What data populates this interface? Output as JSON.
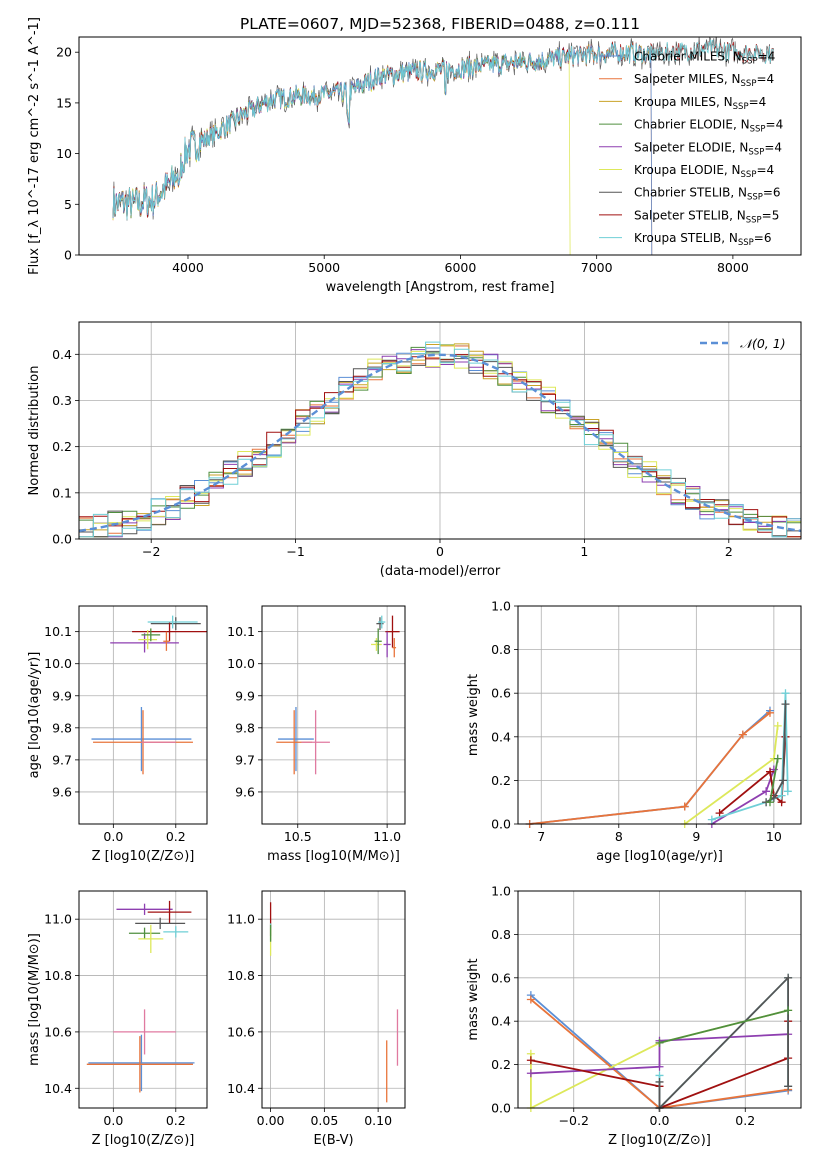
{
  "figure_title": "PLATE=0607, MJD=52368, FIBERID=0488, z=0.111",
  "colors": {
    "chabrier_miles": "#5b8fd6",
    "salpeter_miles": "#e8743b",
    "kroupa_miles": "#c9a227",
    "chabrier_elodie": "#4f8f3f",
    "salpeter_elodie": "#8e3fb0",
    "kroupa_elodie": "#dde85a",
    "chabrier_stelib": "#555555",
    "salpeter_stelib": "#a01010",
    "kroupa_stelib": "#6fcfd6",
    "pink": "#e07aa0",
    "normal": "#5b8fd6"
  },
  "chart_data": [
    {
      "id": "spectrum",
      "type": "line",
      "xlabel": "wavelength [Angstrom, rest frame]",
      "ylabel": "Flux [f_λ 10^-17 erg cm^-2 s^-1 A^-1]",
      "xlim": [
        3200,
        8500
      ],
      "ylim": [
        0,
        21.5
      ],
      "xticks": [
        "4000",
        "5000",
        "6000",
        "7000",
        "8000"
      ],
      "yticks": [
        "0",
        "5",
        "10",
        "15",
        "20"
      ],
      "legend": [
        {
          "name": "Chabrier MILES, N_SSP=4",
          "color": "#5b8fd6"
        },
        {
          "name": "Salpeter MILES, N_SSP=4",
          "color": "#e8743b"
        },
        {
          "name": "Kroupa MILES, N_SSP=4",
          "color": "#c9a227"
        },
        {
          "name": "Chabrier ELODIE, N_SSP=4",
          "color": "#4f8f3f"
        },
        {
          "name": "Salpeter ELODIE, N_SSP=4",
          "color": "#8e3fb0"
        },
        {
          "name": "Kroupa ELODIE, N_SSP=4",
          "color": "#dde85a"
        },
        {
          "name": "Chabrier STELIB, N_SSP=6",
          "color": "#555555"
        },
        {
          "name": "Salpeter STELIB, N_SSP=5",
          "color": "#a01010"
        },
        {
          "name": "Kroupa STELIB, N_SSP=6",
          "color": "#6fcfd6"
        }
      ],
      "continuum": [
        [
          3450,
          5.2
        ],
        [
          3600,
          5.0
        ],
        [
          3750,
          5.5
        ],
        [
          3900,
          7.5
        ],
        [
          4000,
          10.5
        ],
        [
          4200,
          12.0
        ],
        [
          4400,
          13.8
        ],
        [
          4600,
          15.3
        ],
        [
          4800,
          15.7
        ],
        [
          5000,
          15.8
        ],
        [
          5200,
          16.2
        ],
        [
          5400,
          17.6
        ],
        [
          5600,
          18.0
        ],
        [
          5800,
          18.2
        ],
        [
          6000,
          18.4
        ],
        [
          6200,
          18.7
        ],
        [
          6400,
          19.0
        ],
        [
          6600,
          19.2
        ],
        [
          6800,
          19.6
        ],
        [
          7000,
          19.8
        ],
        [
          7200,
          20.0
        ],
        [
          7400,
          19.8
        ],
        [
          7600,
          20.1
        ],
        [
          7800,
          20.3
        ],
        [
          8000,
          20.1
        ],
        [
          8200,
          19.9
        ],
        [
          8300,
          19.8
        ]
      ]
    },
    {
      "id": "residuals",
      "type": "histogram",
      "xlabel": "(data-model)/error",
      "ylabel": "Normed distribution",
      "xlim": [
        -2.5,
        2.5
      ],
      "ylim": [
        0,
        0.47
      ],
      "xticks": [
        "−2",
        "−1",
        "0",
        "1",
        "2"
      ],
      "yticks": [
        "0.0",
        "0.1",
        "0.2",
        "0.3",
        "0.4"
      ],
      "legend_label": "𝒩(0, 1)",
      "bin_width": 0.1
    },
    {
      "id": "age_vs_Z",
      "type": "scatter",
      "xlabel": "Z [log10(Z/Z⊙)]",
      "ylabel": "age  [log10(age/yr)]",
      "xlim": [
        -0.11,
        0.3
      ],
      "ylim": [
        9.5,
        10.18
      ],
      "xticks": [
        "0.0",
        "0.2"
      ],
      "yticks": [
        "9.6",
        "9.7",
        "9.8",
        "9.9",
        "10.0",
        "10.1"
      ],
      "points": [
        {
          "c": "chabrier_miles",
          "x": 0.09,
          "y": 9.765,
          "xerr": 0.16,
          "yerr": 0.1
        },
        {
          "c": "salpeter_miles",
          "x": 0.095,
          "y": 9.755,
          "xerr": 0.16,
          "yerr": 0.1
        },
        {
          "c": "pink",
          "x": 0.145,
          "y": 9.755,
          "xerr": 0.055,
          "yerr": 0.0
        },
        {
          "c": "chabrier_stelib",
          "x": 0.2,
          "y": 10.125,
          "xerr": 0.08,
          "yerr": 0.02
        },
        {
          "c": "salpeter_stelib",
          "x": 0.18,
          "y": 10.1,
          "xerr": 0.12,
          "yerr": 0.03
        },
        {
          "c": "kroupa_stelib",
          "x": 0.19,
          "y": 10.13,
          "xerr": 0.08,
          "yerr": 0.02
        },
        {
          "c": "salpeter_elodie",
          "x": 0.1,
          "y": 10.065,
          "xerr": 0.11,
          "yerr": 0.03
        },
        {
          "c": "kroupa_elodie",
          "x": 0.11,
          "y": 10.075,
          "xerr": 0.03,
          "yerr": 0.03
        },
        {
          "c": "chabrier_elodie",
          "x": 0.12,
          "y": 10.09,
          "xerr": 0.03,
          "yerr": 0.02
        },
        {
          "c": "salpeter_miles",
          "x": 0.17,
          "y": 10.07,
          "xerr": 0.01,
          "yerr": 0.03
        }
      ]
    },
    {
      "id": "age_vs_mass",
      "type": "scatter",
      "xlabel": "mass [log10(M/M⊙)]",
      "ylabel": "",
      "xlim": [
        10.3,
        11.1
      ],
      "ylim": [
        9.5,
        10.18
      ],
      "xticks": [
        "10.5",
        "11.0"
      ],
      "yticks": [
        "9.6",
        "9.7",
        "9.8",
        "9.9",
        "10.0",
        "10.1"
      ],
      "points": [
        {
          "c": "chabrier_miles",
          "x": 10.49,
          "y": 9.765,
          "xerr": 0.1,
          "yerr": 0.1
        },
        {
          "c": "salpeter_miles",
          "x": 10.48,
          "y": 9.755,
          "xerr": 0.1,
          "yerr": 0.1
        },
        {
          "c": "pink",
          "x": 10.6,
          "y": 9.755,
          "xerr": 0.08,
          "yerr": 0.1
        },
        {
          "c": "chabrier_stelib",
          "x": 10.96,
          "y": 10.125,
          "xerr": 0.02,
          "yerr": 0.02
        },
        {
          "c": "salpeter_stelib",
          "x": 11.03,
          "y": 10.1,
          "xerr": 0.04,
          "yerr": 0.05
        },
        {
          "c": "kroupa_stelib",
          "x": 10.97,
          "y": 10.13,
          "xerr": 0.02,
          "yerr": 0.02
        },
        {
          "c": "salpeter_elodie",
          "x": 11.0,
          "y": 10.06,
          "xerr": 0.02,
          "yerr": 0.04
        },
        {
          "c": "kroupa_elodie",
          "x": 10.94,
          "y": 10.06,
          "xerr": 0.03,
          "yerr": 0.02
        },
        {
          "c": "chabrier_elodie",
          "x": 10.95,
          "y": 10.07,
          "xerr": 0.02,
          "yerr": 0.04
        },
        {
          "c": "salpeter_miles",
          "x": 11.04,
          "y": 10.05,
          "xerr": 0.01,
          "yerr": 0.03
        }
      ]
    },
    {
      "id": "mass_weight_vs_age",
      "type": "line",
      "xlabel": "age  [log10(age/yr)]",
      "ylabel": "mass weight",
      "xlim": [
        6.7,
        10.35
      ],
      "ylim": [
        0,
        1.0
      ],
      "xticks": [
        "7",
        "8",
        "9",
        "10"
      ],
      "yticks": [
        "0.0",
        "0.2",
        "0.4",
        "0.6",
        "0.8",
        "1.0"
      ],
      "series": [
        {
          "c": "chabrier_miles",
          "x": [
            6.85,
            8.85,
            9.6,
            9.95
          ],
          "y": [
            0.0,
            0.08,
            0.41,
            0.52
          ]
        },
        {
          "c": "salpeter_miles",
          "x": [
            6.85,
            8.85,
            9.6,
            9.95
          ],
          "y": [
            0.0,
            0.08,
            0.41,
            0.51
          ]
        },
        {
          "c": "kroupa_elodie",
          "x": [
            8.85,
            10.0,
            10.05
          ],
          "y": [
            0.0,
            0.3,
            0.45
          ]
        },
        {
          "c": "salpeter_elodie",
          "x": [
            9.2,
            9.9,
            10.0
          ],
          "y": [
            0.0,
            0.15,
            0.25
          ]
        },
        {
          "c": "salpeter_stelib",
          "x": [
            9.3,
            9.95,
            10.0,
            10.1,
            10.15
          ],
          "y": [
            0.05,
            0.24,
            0.13,
            0.1,
            0.4
          ]
        },
        {
          "c": "kroupa_stelib",
          "x": [
            9.2,
            9.9,
            10.1,
            10.15,
            10.18
          ],
          "y": [
            0.02,
            0.1,
            0.13,
            0.6,
            0.15
          ]
        },
        {
          "c": "chabrier_stelib",
          "x": [
            9.9,
            10.0,
            10.12,
            10.15
          ],
          "y": [
            0.1,
            0.12,
            0.2,
            0.55
          ]
        },
        {
          "c": "chabrier_elodie",
          "x": [
            9.95,
            10.05
          ],
          "y": [
            0.1,
            0.3
          ]
        }
      ]
    },
    {
      "id": "mass_vs_Z",
      "type": "scatter",
      "xlabel": "Z [log10(Z/Z⊙)]",
      "ylabel": "mass [log10(M/M⊙)]",
      "xlim": [
        -0.11,
        0.3
      ],
      "ylim": [
        10.33,
        11.1
      ],
      "xticks": [
        "0.0",
        "0.2"
      ],
      "yticks": [
        "10.4",
        "10.6",
        "10.8",
        "11.0"
      ],
      "points": [
        {
          "c": "chabrier_miles",
          "x": 0.09,
          "y": 10.49,
          "xerr": 0.17,
          "yerr": 0.1
        },
        {
          "c": "salpeter_miles",
          "x": 0.085,
          "y": 10.485,
          "xerr": 0.17,
          "yerr": 0.1
        },
        {
          "c": "pink",
          "x": 0.1,
          "y": 10.6,
          "xerr": 0.1,
          "yerr": 0.08
        },
        {
          "c": "salpeter_elodie",
          "x": 0.1,
          "y": 11.035,
          "xerr": 0.09,
          "yerr": 0.02
        },
        {
          "c": "salpeter_stelib",
          "x": 0.18,
          "y": 11.025,
          "xerr": 0.07,
          "yerr": 0.04
        },
        {
          "c": "chabrier_stelib",
          "x": 0.15,
          "y": 10.985,
          "xerr": 0.08,
          "yerr": 0.02
        },
        {
          "c": "kroupa_stelib",
          "x": 0.2,
          "y": 10.955,
          "xerr": 0.04,
          "yerr": 0.02
        },
        {
          "c": "chabrier_elodie",
          "x": 0.1,
          "y": 10.95,
          "xerr": 0.05,
          "yerr": 0.02
        },
        {
          "c": "kroupa_elodie",
          "x": 0.12,
          "y": 10.93,
          "xerr": 0.04,
          "yerr": 0.05
        }
      ]
    },
    {
      "id": "mass_vs_ebv",
      "type": "scatter",
      "xlabel": "E(B-V)",
      "ylabel": "",
      "xlim": [
        -0.008,
        0.125
      ],
      "ylim": [
        10.33,
        11.1
      ],
      "xticks": [
        "0.00",
        "0.05",
        "0.10"
      ],
      "yticks": [
        "10.4",
        "10.6",
        "10.8",
        "11.0"
      ],
      "points": [
        {
          "c": "salpeter_miles",
          "x": 0.108,
          "y": 10.46,
          "xerr": 0.0,
          "yerr": 0.11
        },
        {
          "c": "pink",
          "x": 0.118,
          "y": 10.58,
          "xerr": 0.0,
          "yerr": 0.1
        },
        {
          "c": "salpeter_stelib",
          "x": 0.0,
          "y": 11.0,
          "xerr": 0.0,
          "yerr": 0.06
        },
        {
          "c": "kroupa_stelib",
          "x": 0.0,
          "y": 10.955,
          "xerr": 0.0,
          "yerr": 0.03
        },
        {
          "c": "kroupa_elodie",
          "x": 0.0,
          "y": 10.92,
          "xerr": 0.0,
          "yerr": 0.05
        },
        {
          "c": "chabrier_elodie",
          "x": 0.0,
          "y": 10.95,
          "xerr": 0.0,
          "yerr": 0.03
        }
      ]
    },
    {
      "id": "mass_weight_vs_Z",
      "type": "line",
      "xlabel": "Z [log10(Z/Z⊙)]",
      "ylabel": "mass weight",
      "xlim": [
        -0.33,
        0.33
      ],
      "ylim": [
        0,
        1.0
      ],
      "xticks": [
        "−0.2",
        "0.0",
        "0.2"
      ],
      "yticks": [
        "0.0",
        "0.2",
        "0.4",
        "0.6",
        "0.8",
        "1.0"
      ],
      "series": [
        {
          "c": "chabrier_miles",
          "x": [
            -0.3,
            0.0,
            0.3
          ],
          "y": [
            0.52,
            0.0,
            0.08
          ]
        },
        {
          "c": "salpeter_miles",
          "x": [
            -0.3,
            0.0,
            0.3
          ],
          "y": [
            0.5,
            0.0,
            0.085
          ]
        },
        {
          "c": "kroupa_elodie",
          "x": [
            -0.3,
            -0.3,
            0.0,
            0.3
          ],
          "y": [
            0.25,
            0.0,
            0.3,
            0.45
          ]
        },
        {
          "c": "salpeter_elodie",
          "x": [
            -0.3,
            0.0,
            0.0,
            0.3
          ],
          "y": [
            0.16,
            0.19,
            0.31,
            0.34
          ]
        },
        {
          "c": "salpeter_stelib",
          "x": [
            -0.3,
            0.0,
            0.0,
            0.3,
            0.3
          ],
          "y": [
            0.22,
            0.1,
            0.0,
            0.23,
            0.4
          ]
        },
        {
          "c": "kroupa_stelib",
          "x": [
            0.0,
            0.0,
            0.3,
            0.3
          ],
          "y": [
            0.15,
            0.0,
            0.6,
            0.1
          ]
        },
        {
          "c": "chabrier_stelib",
          "x": [
            0.0,
            0.0,
            0.3,
            0.3
          ],
          "y": [
            0.12,
            0.0,
            0.6,
            0.1
          ]
        },
        {
          "c": "chabrier_elodie",
          "x": [
            0.0,
            0.3
          ],
          "y": [
            0.3,
            0.45
          ]
        }
      ]
    }
  ]
}
